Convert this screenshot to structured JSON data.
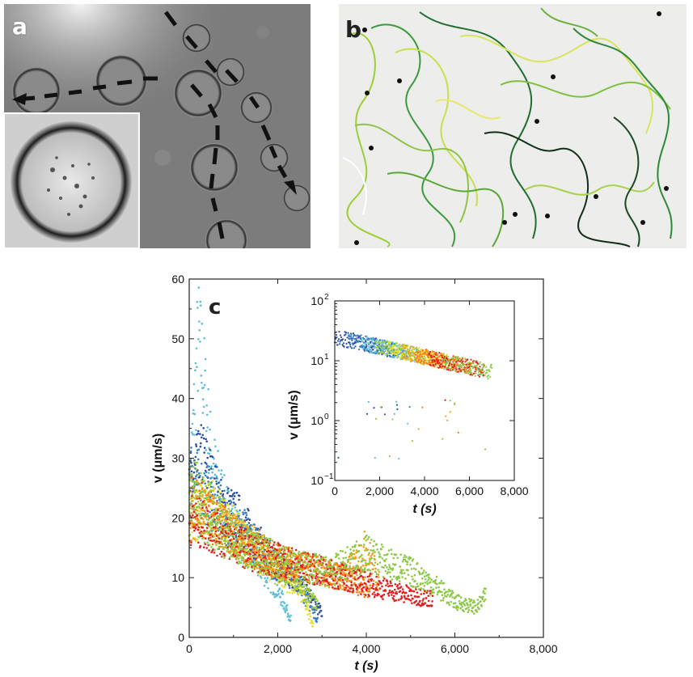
{
  "figure": {
    "panel_a": {
      "letter": "a"
    },
    "panel_b": {
      "letter": "b"
    },
    "panel_c": {
      "letter": "c"
    }
  },
  "chart_data": [
    {
      "type": "scatter",
      "xlabel": "t (s)",
      "ylabel": "v (μm/s)",
      "xlim": [
        0,
        8000
      ],
      "ylim": [
        0,
        60
      ],
      "xticks": [
        "0",
        "2,000",
        "4,000",
        "6,000",
        "8,000"
      ],
      "yticks": [
        "0",
        "10",
        "20",
        "30",
        "40",
        "50",
        "60"
      ],
      "grid": false,
      "series_colors": [
        "#2a4fa0",
        "#3a7fc8",
        "#5bbfd8",
        "#9ccc3c",
        "#e8e030",
        "#f5a020",
        "#ff7a10",
        "#e02020",
        "#8ec848"
      ],
      "series": [
        {
          "color": "#5bbfd8",
          "x": [
            0,
            200,
            300,
            500,
            800,
            1200,
            1600,
            2000,
            2300
          ],
          "y": [
            22,
            50,
            45,
            30,
            22,
            16,
            12,
            8,
            3
          ]
        },
        {
          "color": "#2a4fa0",
          "x": [
            0,
            300,
            700,
            1100,
            1500,
            2000,
            2500,
            3000
          ],
          "y": [
            25,
            30,
            22,
            20,
            16,
            12,
            9,
            4
          ]
        },
        {
          "color": "#3a7fc8",
          "x": [
            0,
            400,
            800,
            1200,
            1800,
            2400,
            2900
          ],
          "y": [
            28,
            24,
            20,
            18,
            13,
            10,
            3
          ]
        },
        {
          "color": "#e8e030",
          "x": [
            0,
            500,
            1000,
            1500,
            2000,
            2500,
            2800
          ],
          "y": [
            20,
            22,
            18,
            14,
            11,
            8,
            2
          ]
        },
        {
          "color": "#9ccc3c",
          "x": [
            0,
            600,
            1200,
            1800,
            2400,
            2900
          ],
          "y": [
            26,
            20,
            16,
            13,
            10,
            5
          ]
        },
        {
          "color": "#f5a020",
          "x": [
            0,
            500,
            1000,
            1500,
            2000,
            2500,
            3000,
            3500,
            4000,
            4300
          ],
          "y": [
            21,
            20,
            17,
            15,
            13,
            12,
            11,
            10,
            15,
            9
          ]
        },
        {
          "color": "#ff7a10",
          "x": [
            0,
            600,
            1200,
            1800,
            2400,
            3000,
            3600,
            4100
          ],
          "y": [
            24,
            19,
            16,
            13,
            12,
            11,
            10,
            8
          ]
        },
        {
          "color": "#e02020",
          "x": [
            0,
            500,
            1000,
            1500,
            2000,
            2500,
            3000,
            3500,
            4000,
            4500,
            5000,
            5500
          ],
          "y": [
            20,
            18,
            16,
            14,
            13,
            12,
            11,
            10,
            9,
            8,
            7,
            6.5
          ]
        },
        {
          "color": "#8ec848",
          "x": [
            0,
            800,
            1600,
            2400,
            3200,
            4000,
            4600,
            5000,
            5500,
            6000,
            6500,
            6700
          ],
          "y": [
            23,
            17,
            14,
            12,
            11,
            14,
            12,
            11,
            9,
            6,
            5,
            7
          ]
        }
      ]
    },
    {
      "type": "scatter",
      "xlabel": "t (s)",
      "ylabel": "v (μm/s)",
      "xlim": [
        0,
        8000
      ],
      "ylim": [
        0.1,
        100
      ],
      "yscale": "log",
      "xticks": [
        "0",
        "2,000",
        "4,000",
        "6,000",
        "8,000"
      ],
      "yticks": [
        "10",
        "10",
        "10",
        "10"
      ],
      "ytick_exponents": [
        "−1",
        "0",
        "1",
        "2"
      ],
      "grid": false
    }
  ]
}
